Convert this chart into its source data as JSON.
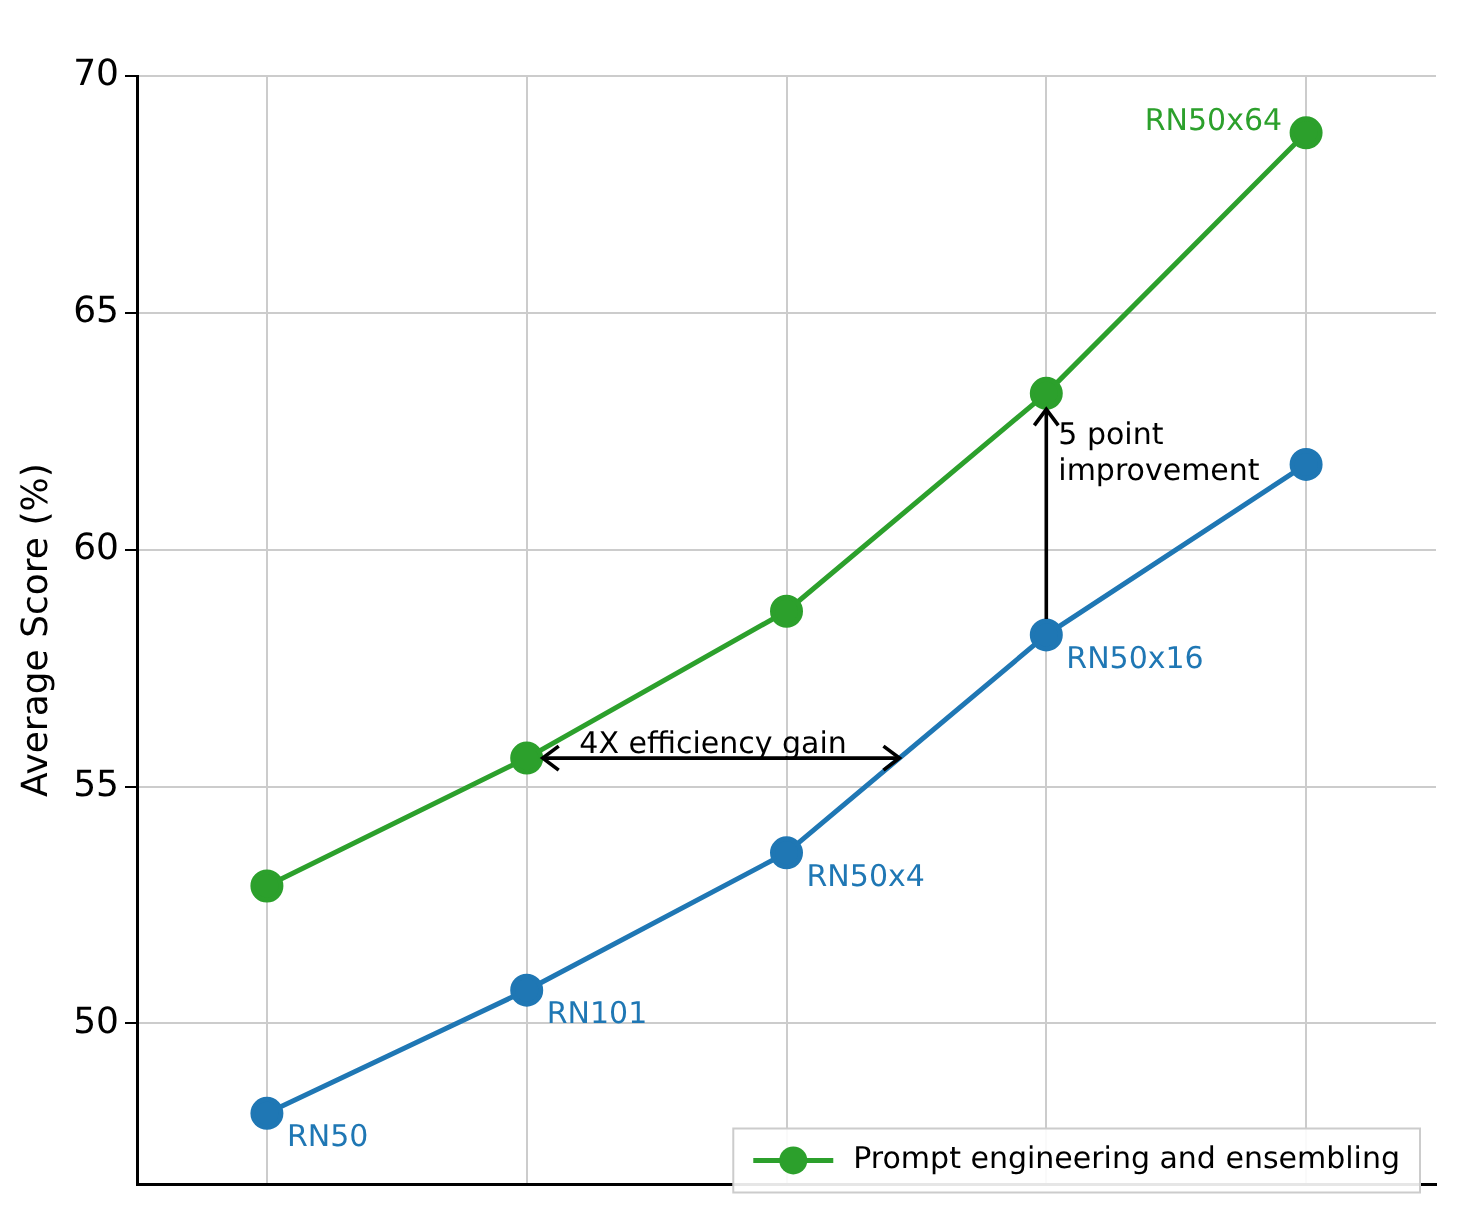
{
  "chart_data": {
    "type": "line",
    "ylabel": "Average Score (%)",
    "categories": [
      null,
      null,
      null,
      null,
      null
    ],
    "ylim": [
      46.6,
      70
    ],
    "yticks": [
      50,
      55,
      60,
      65,
      70
    ],
    "grid": true,
    "marker": "circle",
    "line_style": "solid",
    "legend": "bottom right",
    "series": [
      {
        "name": "Prompt engineering and ensembling",
        "color": "#2ca02c",
        "values": [
          52.9,
          55.6,
          58.7,
          63.3,
          68.8
        ],
        "value_labels": [
          null,
          null,
          null,
          null,
          "RN50x64"
        ]
      },
      {
        "color": "#1f77b4",
        "values": [
          48.1,
          50.7,
          53.6,
          58.2,
          61.8
        ],
        "value_labels": [
          "RN50",
          "RN101",
          "RN50x4",
          "RN50x16",
          null
        ]
      }
    ],
    "annotations": [
      "4X efficiency gain",
      "5 point improvement"
    ]
  }
}
